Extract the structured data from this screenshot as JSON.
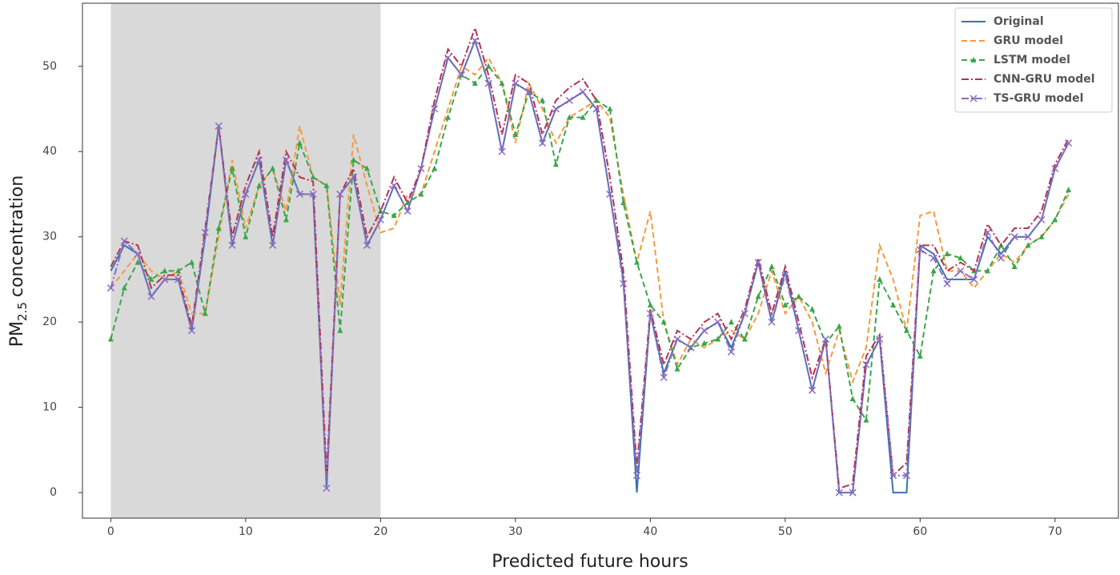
{
  "chart_data": {
    "type": "line",
    "xlabel": "Predicted future hours",
    "ylabel": {
      "main": "PM",
      "sub": "2.5",
      "rest": "concentration"
    },
    "x": [
      0,
      1,
      2,
      3,
      4,
      5,
      6,
      7,
      8,
      9,
      10,
      11,
      12,
      13,
      14,
      15,
      16,
      17,
      18,
      19,
      20,
      21,
      22,
      23,
      24,
      25,
      26,
      27,
      28,
      29,
      30,
      31,
      32,
      33,
      34,
      35,
      36,
      37,
      38,
      39,
      40,
      41,
      42,
      43,
      44,
      45,
      46,
      47,
      48,
      49,
      50,
      51,
      52,
      53,
      54,
      55,
      56,
      57,
      58,
      59,
      60,
      61,
      62,
      63,
      64,
      65,
      66,
      67,
      68,
      69,
      70,
      71
    ],
    "series": [
      {
        "name": "Original",
        "color": "#3a73b0",
        "dash": "none",
        "marker": "none",
        "values": [
          26,
          29,
          28,
          23,
          25,
          25,
          19,
          30,
          43,
          29,
          35,
          39,
          29,
          39,
          35,
          35,
          0.5,
          35,
          37,
          29,
          32,
          36,
          33,
          38,
          45,
          51,
          49,
          53,
          48,
          40,
          48,
          47,
          41,
          45,
          46,
          47,
          45,
          35,
          25,
          0,
          21,
          14,
          18,
          17,
          19,
          20,
          17,
          21,
          27,
          20,
          26,
          19,
          12,
          18,
          0,
          0,
          15,
          18,
          0,
          0,
          29,
          28,
          25,
          25,
          25,
          30,
          28,
          30,
          30,
          32,
          38,
          41
        ]
      },
      {
        "name": "GRU model",
        "color": "#f59a3c",
        "dash": "7 4",
        "marker": "none",
        "values": [
          24,
          26,
          28,
          26,
          25,
          26,
          21,
          21,
          30,
          39,
          31,
          36,
          38,
          33,
          43,
          37,
          36,
          22,
          42,
          36,
          30.5,
          31,
          35,
          35,
          40,
          45,
          50,
          49,
          51,
          48,
          41,
          48,
          45,
          41,
          44,
          45,
          46,
          44,
          35,
          27,
          33,
          20,
          15,
          18,
          17,
          18,
          19,
          18,
          21,
          26,
          21,
          23,
          20,
          14,
          19,
          13,
          17,
          29,
          25,
          19,
          32.5,
          33,
          26,
          26,
          24,
          26,
          28,
          27,
          29,
          30,
          32,
          35
        ]
      },
      {
        "name": "LSTM model",
        "color": "#3aa64a",
        "dash": "7 4",
        "marker": "triangle",
        "values": [
          18,
          24,
          27,
          25,
          26,
          26,
          27,
          21,
          31,
          38,
          30,
          36,
          38,
          32,
          41,
          37,
          36,
          19,
          39,
          38,
          33,
          32.5,
          34,
          35,
          38,
          44,
          49,
          48,
          50,
          48,
          42,
          47,
          46,
          38.5,
          44,
          44,
          46,
          45,
          34,
          27,
          22,
          20,
          14.5,
          17,
          17.5,
          18,
          20,
          18,
          23,
          26.5,
          22,
          23,
          21.5,
          17.5,
          19.5,
          11,
          8.5,
          25,
          22,
          19,
          16,
          26,
          28,
          27.5,
          26,
          26,
          29,
          26.5,
          29,
          30,
          32,
          35.5
        ]
      },
      {
        "name": "CNN-GRU model",
        "color": "#b8304f",
        "dash": "9 3 2 3",
        "marker": "none",
        "values": [
          26.5,
          29.5,
          29,
          24,
          25.5,
          25.5,
          19.5,
          31,
          43,
          30,
          36,
          40,
          30,
          40,
          37,
          36.5,
          2,
          35,
          38,
          30,
          33,
          37,
          34,
          38,
          46,
          52,
          50,
          54.5,
          49,
          42,
          49,
          48,
          42,
          46,
          47.5,
          48.5,
          46,
          37,
          26,
          3,
          21.5,
          15,
          19,
          18,
          20,
          21,
          18,
          21.5,
          27.5,
          21,
          26.5,
          20,
          13.5,
          18,
          0.5,
          1,
          16,
          18.5,
          2,
          3.5,
          29,
          29,
          26,
          27,
          26,
          31.5,
          29,
          31,
          31,
          33,
          38.5,
          41.5
        ]
      },
      {
        "name": "TS-GRU model",
        "color": "#8a6cc0",
        "dash": "9 3 2 3",
        "marker": "x",
        "values": [
          24,
          29.5,
          28,
          23,
          25,
          25,
          19,
          30.5,
          43,
          29,
          35,
          39,
          29,
          39,
          35,
          35,
          0.5,
          35,
          37,
          29,
          32,
          36,
          33,
          38,
          45,
          51,
          49,
          53,
          48,
          40,
          48,
          47,
          41,
          45,
          46,
          47,
          45,
          35,
          24.5,
          2,
          21,
          13.5,
          18,
          17,
          19,
          20,
          16.5,
          21,
          27,
          20,
          25.5,
          19,
          12,
          18,
          0,
          0,
          15,
          18,
          2,
          2,
          28.5,
          27.5,
          24.5,
          26,
          25,
          30.5,
          27.5,
          30,
          30,
          32,
          38,
          41
        ]
      }
    ],
    "shaded_xspan": [
      0,
      20
    ],
    "shade_color": "#d9d9d9",
    "xlim": [
      -2.1,
      74.7
    ],
    "ylim": [
      -3,
      57.4
    ],
    "xticks": [
      0,
      10,
      20,
      30,
      40,
      50,
      60,
      70
    ],
    "yticks": [
      0,
      10,
      20,
      30,
      40,
      50
    ],
    "legend": "upper right"
  }
}
